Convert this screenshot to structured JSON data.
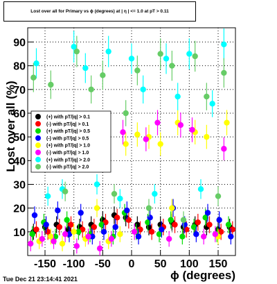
{
  "title": "Lost over all for Primary vs ϕ (degrees) at | η | <= 1.0 at pT > 0.11",
  "footer": "Tue Dec 21 23:14:41 2021",
  "chart_data": {
    "type": "scatter",
    "xlabel": "ϕ (degrees)",
    "ylabel": "Lost over all (%)",
    "xlim": [
      -180,
      180
    ],
    "ylim": [
      0,
      96
    ],
    "xticks": [
      -150,
      -100,
      -50,
      0,
      50,
      100,
      150
    ],
    "yticks": [
      10,
      20,
      30,
      40,
      50,
      60,
      70,
      80,
      90
    ],
    "grid": true,
    "legend_position": "middle-left",
    "series": [
      {
        "name": "(+) with pT/|q| > 0.1",
        "color": "#000000",
        "x": [
          -170,
          -150,
          -130,
          -110,
          -90,
          -70,
          -50,
          -30,
          -10,
          10,
          30,
          50,
          70,
          90,
          110,
          130,
          150,
          170
        ],
        "y": [
          10,
          12,
          13,
          11,
          12,
          13,
          15,
          17,
          16,
          13,
          12,
          13,
          14,
          12,
          13,
          12,
          11,
          12
        ]
      },
      {
        "name": "(-) with pT/|q| > 0.1",
        "color": "#ff0000",
        "x": [
          -165,
          -145,
          -125,
          -105,
          -85,
          -65,
          -45,
          -25,
          -5,
          15,
          35,
          55,
          75,
          95,
          115,
          135,
          155,
          175
        ],
        "y": [
          11,
          10,
          12,
          13,
          11,
          12,
          14,
          16,
          15,
          11,
          10,
          12,
          13,
          11,
          14,
          13,
          10,
          11
        ]
      },
      {
        "name": "(+) with pT/|q| > 0.5",
        "color": "#00dd00",
        "x": [
          -172,
          -152,
          -132,
          -112,
          -92,
          -72,
          -52,
          -32,
          -12,
          8,
          28,
          48,
          68,
          88,
          108,
          128,
          148,
          168
        ],
        "y": [
          9,
          14,
          8,
          15,
          10,
          9,
          13,
          8,
          18,
          10,
          14,
          9,
          15,
          8,
          12,
          16,
          9,
          13
        ]
      },
      {
        "name": "(-) with pT/|q| > 0.5",
        "color": "#0000ff",
        "x": [
          -168,
          -148,
          -128,
          -108,
          -88,
          -68,
          -48,
          -28,
          -8,
          12,
          32,
          52,
          72,
          92,
          112,
          132,
          152,
          172
        ],
        "y": [
          17,
          13,
          19,
          9,
          18,
          8,
          10,
          12,
          19,
          8,
          16,
          11,
          20,
          13,
          9,
          18,
          15,
          8
        ]
      },
      {
        "name": "(+) with pT/|q| > 1.0",
        "color": "#ffff00",
        "x": [
          -160,
          -140,
          -120,
          -100,
          -80,
          -60,
          -40,
          -20,
          -10,
          10,
          30,
          50,
          70,
          80,
          110,
          130,
          150,
          165
        ],
        "y": [
          6,
          8,
          5,
          10,
          7,
          20,
          6,
          9,
          47,
          51,
          50,
          47,
          20,
          56,
          52,
          50,
          8,
          56
        ]
      },
      {
        "name": "(-) with pT/|q| > 1.0",
        "color": "#ff00ff",
        "x": [
          -175,
          -155,
          -135,
          -115,
          -95,
          -75,
          -55,
          -35,
          -15,
          5,
          25,
          45,
          65,
          85,
          105,
          125,
          145,
          160
        ],
        "y": [
          5,
          7,
          6,
          9,
          4,
          8,
          3,
          7,
          52,
          10,
          49,
          56,
          7,
          55,
          53,
          8,
          9,
          45
        ]
      },
      {
        "name": "(+) with pT/|q| > 2.0",
        "color": "#00ffff",
        "x": [
          -165,
          -145,
          -120,
          -100,
          -80,
          -60,
          -40,
          -20,
          0,
          20,
          40,
          60,
          80,
          100,
          120,
          140,
          160
        ],
        "y": [
          81,
          25,
          28,
          88,
          79,
          30,
          86,
          24,
          83,
          70,
          26,
          83,
          67,
          85,
          28,
          64,
          89
        ]
      },
      {
        "name": "(-) with pT/|q| > 2.0",
        "color": "#66cc66",
        "x": [
          -170,
          -140,
          -115,
          -95,
          -70,
          -50,
          -30,
          -10,
          10,
          30,
          50,
          70,
          90,
          110,
          130,
          150,
          160
        ],
        "y": [
          75,
          72,
          27,
          86,
          70,
          76,
          26,
          60,
          78,
          20,
          85,
          80,
          15,
          84,
          67,
          25,
          77
        ]
      }
    ]
  }
}
